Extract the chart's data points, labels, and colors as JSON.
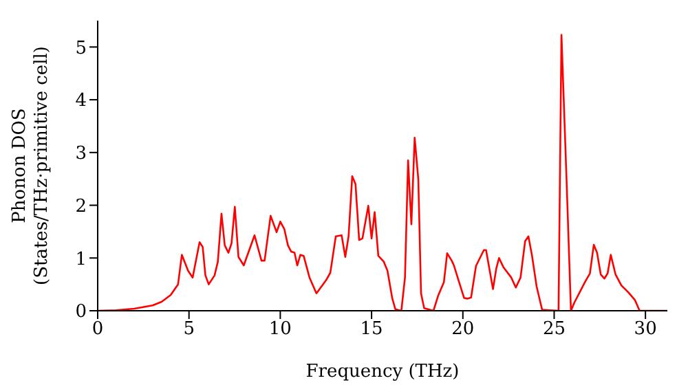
{
  "chart_data": {
    "type": "line",
    "xlabel": "Frequency (THz)",
    "ylabel": "Phonon DOS\n(States/THz·primitive cell)",
    "x": [
      0,
      1,
      2,
      3,
      3.5,
      4,
      4.4,
      4.61,
      4.95,
      5.2,
      5.58,
      5.75,
      5.9,
      6.08,
      6.4,
      6.58,
      6.78,
      6.96,
      7.16,
      7.33,
      7.51,
      7.71,
      8.0,
      8.59,
      8.97,
      9.14,
      9.47,
      9.8,
      10.0,
      10.22,
      10.42,
      10.6,
      10.78,
      10.93,
      11.1,
      11.28,
      11.6,
      11.98,
      12.53,
      12.74,
      13.04,
      13.36,
      13.56,
      13.74,
      13.94,
      14.12,
      14.32,
      14.5,
      14.82,
      15.0,
      15.17,
      15.37,
      15.67,
      15.87,
      16.13,
      16.3,
      16.63,
      16.83,
      17.0,
      17.18,
      17.36,
      17.56,
      17.71,
      17.88,
      18.39,
      18.64,
      18.96,
      19.14,
      19.39,
      19.52,
      19.77,
      20.07,
      20.27,
      20.45,
      20.72,
      21.15,
      21.27,
      21.65,
      21.83,
      21.98,
      22.23,
      22.65,
      22.9,
      23.16,
      23.41,
      23.59,
      23.78,
      24.04,
      24.34,
      25.24,
      25.4,
      25.67,
      25.92,
      26.1,
      26.68,
      26.96,
      27.17,
      27.35,
      27.55,
      27.75,
      27.93,
      28.1,
      28.36,
      28.68,
      29.06,
      29.43,
      29.68,
      31.2
    ],
    "series": [
      {
        "color": "#ff0000",
        "values": [
          0,
          0.01,
          0.04,
          0.1,
          0.17,
          0.3,
          0.5,
          1.06,
          0.76,
          0.63,
          1.3,
          1.21,
          0.67,
          0.5,
          0.67,
          0.93,
          1.84,
          1.24,
          1.1,
          1.28,
          1.97,
          1.02,
          0.86,
          1.43,
          0.95,
          0.95,
          1.8,
          1.49,
          1.69,
          1.55,
          1.24,
          1.12,
          1.1,
          0.86,
          1.06,
          1.04,
          0.63,
          0.33,
          0.59,
          0.72,
          1.41,
          1.43,
          1.02,
          1.41,
          2.55,
          2.4,
          1.34,
          1.37,
          1.99,
          1.37,
          1.87,
          1.04,
          0.93,
          0.76,
          0.24,
          0.03,
          0,
          0.63,
          2.85,
          1.64,
          3.28,
          2.49,
          0.33,
          0.05,
          0,
          0.28,
          0.54,
          1.09,
          0.95,
          0.85,
          0.57,
          0.24,
          0.23,
          0.25,
          0.85,
          1.15,
          1.15,
          0.41,
          0.8,
          1.0,
          0.82,
          0.63,
          0.44,
          0.63,
          1.32,
          1.41,
          1.06,
          0.46,
          0.02,
          0,
          5.23,
          2.57,
          0,
          0.15,
          0.54,
          0.71,
          1.25,
          1.1,
          0.69,
          0.61,
          0.71,
          1.06,
          0.69,
          0.48,
          0.35,
          0.2,
          0,
          0
        ]
      }
    ],
    "xlim": [
      0,
      31.2
    ],
    "xticks": [
      0,
      5,
      10,
      15,
      20,
      25,
      30
    ],
    "ylim": [
      0,
      5.5
    ],
    "yticks": [
      0,
      1,
      2,
      3,
      4,
      5
    ],
    "grid": false,
    "legend": false,
    "marker": "none",
    "line_style": "solid"
  }
}
